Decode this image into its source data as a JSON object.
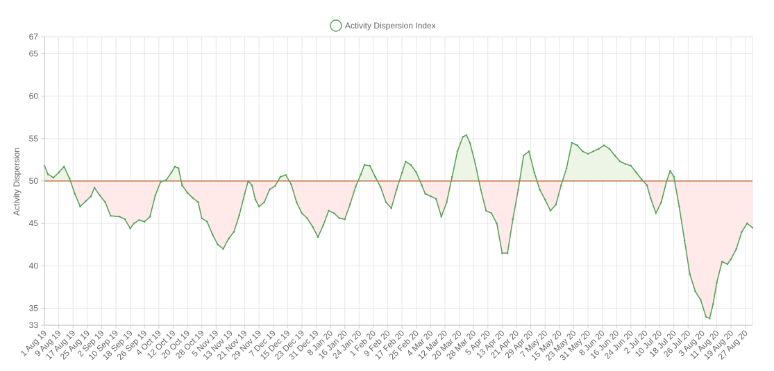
{
  "chart_data": {
    "type": "line",
    "title": "",
    "xlabel": "",
    "ylabel": "Activity Dispersion",
    "ylim": [
      33,
      67
    ],
    "yticks": [
      33,
      35,
      40,
      45,
      50,
      55,
      60,
      65,
      67
    ],
    "grid": true,
    "legend_position": "top-center",
    "baseline": 50,
    "x_start": "2019-08-01",
    "x_end": "2020-08-31",
    "x_tick_labels": [
      "1 Aug 19",
      "9 Aug 19",
      "17 Aug 19",
      "25 Aug 19",
      "2 Sep 19",
      "10 Sep 19",
      "18 Sep 19",
      "26 Sep 19",
      "4 Oct 19",
      "12 Oct 19",
      "20 Oct 19",
      "28 Oct 19",
      "5 Nov 19",
      "13 Nov 19",
      "21 Nov 19",
      "29 Nov 19",
      "7 Dec 19",
      "15 Dec 19",
      "23 Dec 19",
      "31 Dec 19",
      "8 Jan 20",
      "16 Jan 20",
      "24 Jan 20",
      "1 Feb 20",
      "9 Feb 20",
      "17 Feb 20",
      "25 Feb 20",
      "4 Mar 20",
      "12 Mar 20",
      "20 Mar 20",
      "28 Mar 20",
      "5 Apr 20",
      "13 Apr 20",
      "21 Apr 20",
      "29 Apr 20",
      "7 May 20",
      "15 May 20",
      "23 May 20",
      "31 May 20",
      "8 Jun 20",
      "16 Jun 20",
      "24 Jun 20",
      "2 Jul 20",
      "10 Jul 20",
      "18 Jul 20",
      "26 Jul 20",
      "3 Aug 20",
      "11 Aug 20",
      "19 Aug 20",
      "27 Aug 20"
    ],
    "series": [
      {
        "name": "Activity Dispersion Index",
        "color": "#5aa25a",
        "above_fill": "#edf6e6",
        "below_fill": "#ffe9e9",
        "baseline_color": "#c0622c",
        "points": [
          [
            "2019-08-01",
            51.8
          ],
          [
            "2019-08-03",
            50.8
          ],
          [
            "2019-08-06",
            50.4
          ],
          [
            "2019-08-09",
            51.0
          ],
          [
            "2019-08-12",
            51.7
          ],
          [
            "2019-08-15",
            50.3
          ],
          [
            "2019-08-18",
            48.5
          ],
          [
            "2019-08-21",
            47.0
          ],
          [
            "2019-08-24",
            47.6
          ],
          [
            "2019-08-27",
            48.2
          ],
          [
            "2019-08-29",
            49.2
          ],
          [
            "2019-09-01",
            48.3
          ],
          [
            "2019-09-04",
            47.5
          ],
          [
            "2019-09-07",
            45.9
          ],
          [
            "2019-09-12",
            45.8
          ],
          [
            "2019-09-15",
            45.5
          ],
          [
            "2019-09-18",
            44.4
          ],
          [
            "2019-09-20",
            45.0
          ],
          [
            "2019-09-23",
            45.4
          ],
          [
            "2019-09-26",
            45.2
          ],
          [
            "2019-09-29",
            45.8
          ],
          [
            "2019-10-02",
            48.3
          ],
          [
            "2019-10-05",
            49.9
          ],
          [
            "2019-10-08",
            50.1
          ],
          [
            "2019-10-11",
            51.0
          ],
          [
            "2019-10-13",
            51.7
          ],
          [
            "2019-10-15",
            51.5
          ],
          [
            "2019-10-17",
            49.5
          ],
          [
            "2019-10-20",
            48.6
          ],
          [
            "2019-10-23",
            48.0
          ],
          [
            "2019-10-26",
            47.5
          ],
          [
            "2019-10-28",
            45.6
          ],
          [
            "2019-10-31",
            45.2
          ],
          [
            "2019-11-03",
            43.7
          ],
          [
            "2019-11-06",
            42.5
          ],
          [
            "2019-11-09",
            42.0
          ],
          [
            "2019-11-12",
            43.2
          ],
          [
            "2019-11-15",
            44.0
          ],
          [
            "2019-11-18",
            46.0
          ],
          [
            "2019-11-21",
            48.5
          ],
          [
            "2019-11-23",
            50.0
          ],
          [
            "2019-11-25",
            49.5
          ],
          [
            "2019-11-27",
            47.8
          ],
          [
            "2019-11-29",
            47.0
          ],
          [
            "2019-12-02",
            47.5
          ],
          [
            "2019-12-05",
            49.0
          ],
          [
            "2019-12-08",
            49.4
          ],
          [
            "2019-12-11",
            50.5
          ],
          [
            "2019-12-14",
            50.7
          ],
          [
            "2019-12-17",
            49.6
          ],
          [
            "2019-12-20",
            47.5
          ],
          [
            "2019-12-23",
            46.2
          ],
          [
            "2019-12-26",
            45.6
          ],
          [
            "2019-12-29",
            44.6
          ],
          [
            "2020-01-01",
            43.4
          ],
          [
            "2020-01-04",
            44.8
          ],
          [
            "2020-01-07",
            46.5
          ],
          [
            "2020-01-10",
            46.2
          ],
          [
            "2020-01-13",
            45.6
          ],
          [
            "2020-01-16",
            45.5
          ],
          [
            "2020-01-19",
            47.3
          ],
          [
            "2020-01-22",
            49.3
          ],
          [
            "2020-01-25",
            50.8
          ],
          [
            "2020-01-27",
            51.9
          ],
          [
            "2020-01-30",
            51.8
          ],
          [
            "2020-02-02",
            50.5
          ],
          [
            "2020-02-05",
            49.3
          ],
          [
            "2020-02-08",
            47.5
          ],
          [
            "2020-02-11",
            46.8
          ],
          [
            "2020-02-14",
            49.0
          ],
          [
            "2020-02-17",
            51.0
          ],
          [
            "2020-02-19",
            52.3
          ],
          [
            "2020-02-22",
            51.9
          ],
          [
            "2020-02-25",
            51.0
          ],
          [
            "2020-02-28",
            49.5
          ],
          [
            "2020-03-01",
            48.5
          ],
          [
            "2020-03-04",
            48.2
          ],
          [
            "2020-03-07",
            47.9
          ],
          [
            "2020-03-10",
            45.8
          ],
          [
            "2020-03-13",
            47.5
          ],
          [
            "2020-03-16",
            50.5
          ],
          [
            "2020-03-19",
            53.5
          ],
          [
            "2020-03-22",
            55.2
          ],
          [
            "2020-03-24",
            55.4
          ],
          [
            "2020-03-26",
            54.5
          ],
          [
            "2020-03-29",
            52.0
          ],
          [
            "2020-04-01",
            49.0
          ],
          [
            "2020-04-04",
            46.5
          ],
          [
            "2020-04-07",
            46.2
          ],
          [
            "2020-04-10",
            45.0
          ],
          [
            "2020-04-13",
            41.5
          ],
          [
            "2020-04-16",
            41.5
          ],
          [
            "2020-04-19",
            45.5
          ],
          [
            "2020-04-22",
            49.0
          ],
          [
            "2020-04-25",
            53.0
          ],
          [
            "2020-04-28",
            53.5
          ],
          [
            "2020-05-01",
            51.0
          ],
          [
            "2020-05-04",
            49.0
          ],
          [
            "2020-05-07",
            47.8
          ],
          [
            "2020-05-10",
            46.5
          ],
          [
            "2020-05-13",
            47.2
          ],
          [
            "2020-05-16",
            49.5
          ],
          [
            "2020-05-19",
            51.5
          ],
          [
            "2020-05-22",
            54.5
          ],
          [
            "2020-05-25",
            54.2
          ],
          [
            "2020-05-28",
            53.5
          ],
          [
            "2020-05-31",
            53.2
          ],
          [
            "2020-06-03",
            53.5
          ],
          [
            "2020-06-06",
            53.8
          ],
          [
            "2020-06-09",
            54.2
          ],
          [
            "2020-06-12",
            53.8
          ],
          [
            "2020-06-15",
            53.0
          ],
          [
            "2020-06-18",
            52.3
          ],
          [
            "2020-06-21",
            52.0
          ],
          [
            "2020-06-24",
            51.8
          ],
          [
            "2020-06-27",
            51.0
          ],
          [
            "2020-06-30",
            50.2
          ],
          [
            "2020-07-03",
            49.5
          ],
          [
            "2020-07-05",
            48.0
          ],
          [
            "2020-07-08",
            46.2
          ],
          [
            "2020-07-11",
            47.5
          ],
          [
            "2020-07-14",
            50.0
          ],
          [
            "2020-07-16",
            51.2
          ],
          [
            "2020-07-18",
            50.5
          ],
          [
            "2020-07-21",
            47.0
          ],
          [
            "2020-07-24",
            43.0
          ],
          [
            "2020-07-27",
            39.0
          ],
          [
            "2020-07-30",
            37.0
          ],
          [
            "2020-08-02",
            36.0
          ],
          [
            "2020-08-05",
            34.0
          ],
          [
            "2020-08-07",
            33.8
          ],
          [
            "2020-08-09",
            35.5
          ],
          [
            "2020-08-11",
            38.0
          ],
          [
            "2020-08-14",
            40.5
          ],
          [
            "2020-08-17",
            40.2
          ],
          [
            "2020-08-19",
            40.8
          ],
          [
            "2020-08-22",
            42.0
          ],
          [
            "2020-08-25",
            44.0
          ],
          [
            "2020-08-28",
            45.0
          ],
          [
            "2020-08-31",
            44.5
          ]
        ]
      }
    ]
  }
}
